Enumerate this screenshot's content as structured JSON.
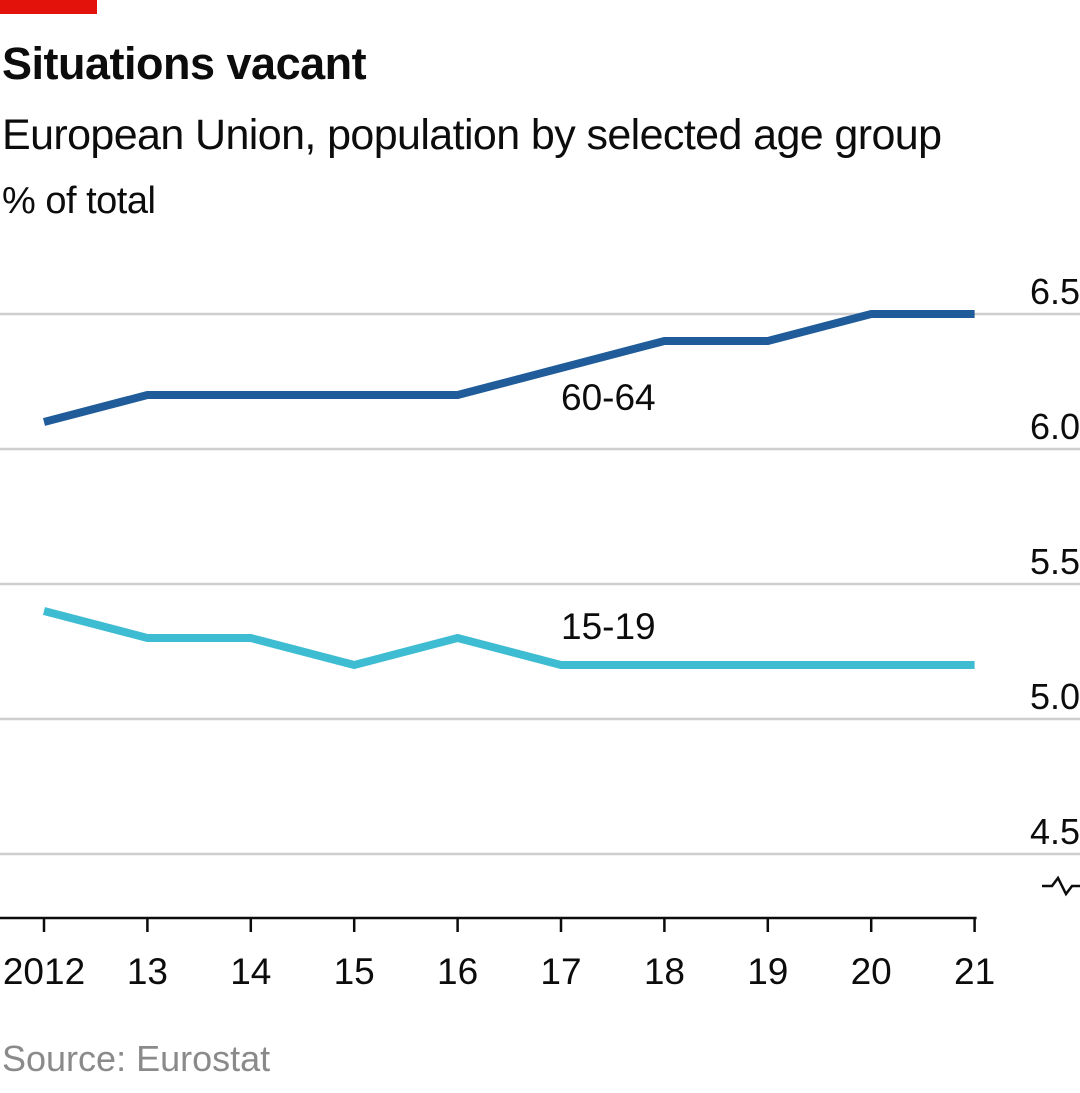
{
  "header": {
    "title": "Situations vacant",
    "subtitle": "European Union, population by selected age group",
    "unit": "% of total"
  },
  "footer": {
    "source": "Source: Eurostat"
  },
  "colors": {
    "accent_tag": "#e3120b",
    "series_60_64": "#1f5c99",
    "series_15_19": "#3ebcd2",
    "gridline": "#cfcfcf",
    "axis": "#0c0c0c"
  },
  "chart_data": {
    "type": "line",
    "x": [
      "2012",
      "13",
      "14",
      "15",
      "16",
      "17",
      "18",
      "19",
      "20",
      "21"
    ],
    "series": [
      {
        "name": "60-64",
        "values": [
          6.1,
          6.2,
          6.2,
          6.2,
          6.2,
          6.3,
          6.4,
          6.4,
          6.5,
          6.5
        ],
        "color": "#1f5c99"
      },
      {
        "name": "15-19",
        "values": [
          5.4,
          5.3,
          5.3,
          5.2,
          5.3,
          5.2,
          5.2,
          5.2,
          5.2,
          5.2
        ],
        "color": "#3ebcd2"
      }
    ],
    "yticks": [
      "6.5",
      "6.0",
      "5.5",
      "5.0",
      "4.5"
    ],
    "ylim": [
      4.5,
      6.5
    ],
    "axis_break": true,
    "grid": true,
    "y_axis_side": "right"
  }
}
